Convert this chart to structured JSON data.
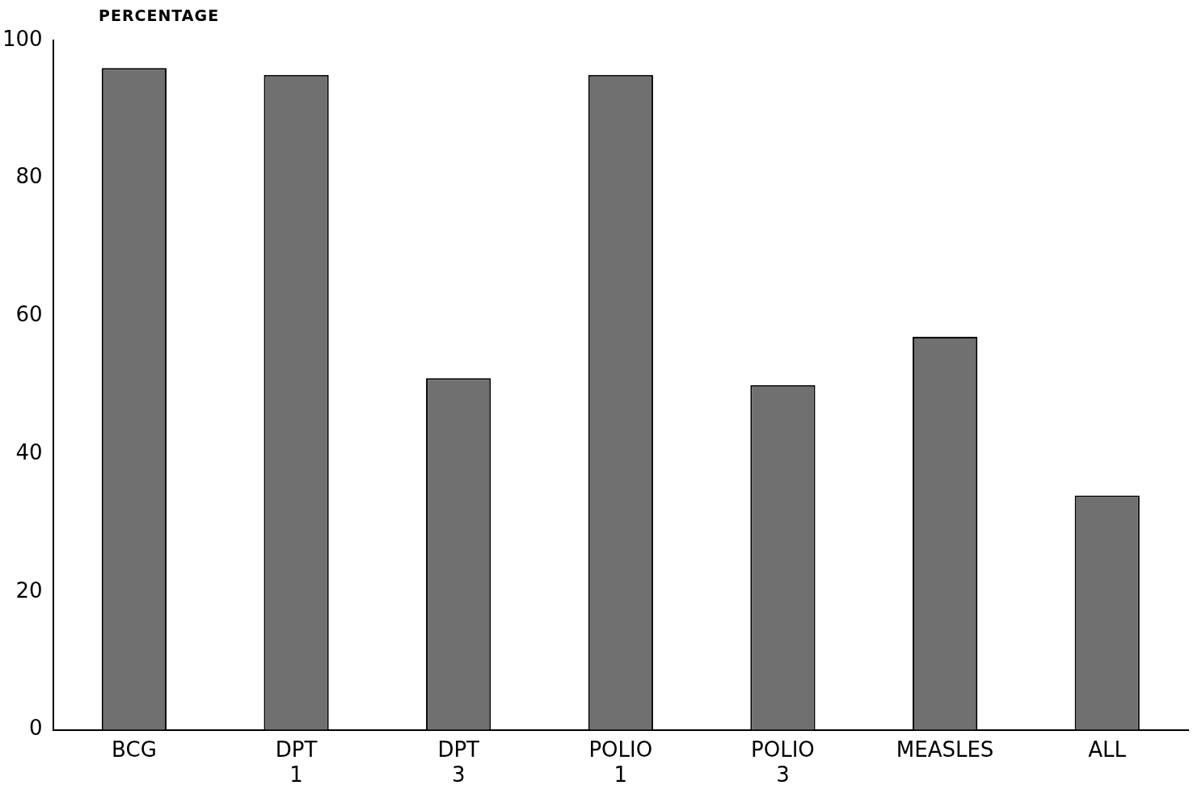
{
  "chart_data": {
    "type": "bar",
    "ylabel": "PERCENTAGE",
    "categories": [
      "BCG",
      "DPT\n1",
      "DPT\n3",
      "POLIO\n1",
      "POLIO\n3",
      "MEASLES",
      "ALL"
    ],
    "values": [
      96,
      95,
      51,
      95,
      50,
      57,
      34
    ],
    "color": "#707070",
    "ylim": [
      0,
      100
    ],
    "yticks": [
      0,
      20,
      40,
      60,
      80,
      100
    ],
    "grid": false
  }
}
